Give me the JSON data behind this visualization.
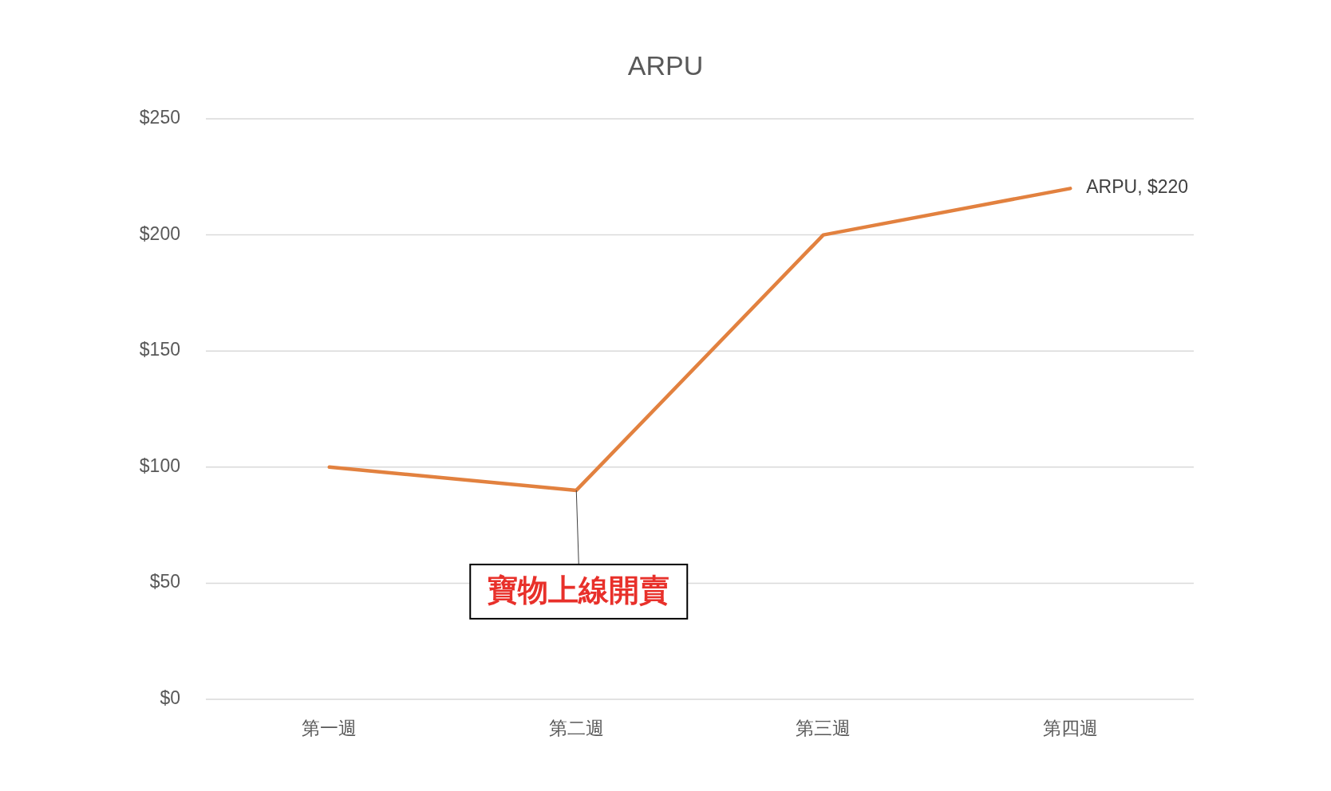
{
  "chart_data": {
    "type": "line",
    "title": "ARPU",
    "categories": [
      "第一週",
      "第二週",
      "第三週",
      "第四週"
    ],
    "series": [
      {
        "color": "#e2813f",
        "values": [
          100,
          90,
          200,
          220
        ],
        "value_labels": [
          null,
          null,
          null,
          "ARPU, $220"
        ]
      }
    ],
    "ylim": [
      0,
      250
    ],
    "yticks": [
      {
        "value": 0,
        "label": "$0"
      },
      {
        "value": 50,
        "label": "$50"
      },
      {
        "value": 100,
        "label": "$100"
      },
      {
        "value": 150,
        "label": "$150"
      },
      {
        "value": 200,
        "label": "$200"
      },
      {
        "value": 250,
        "label": "$250"
      }
    ],
    "grid": "y",
    "marker": "none",
    "line_style": "solid",
    "annotations": [
      {
        "text": "寶物上線開賣",
        "x": "第二週",
        "y": 90
      }
    ]
  }
}
